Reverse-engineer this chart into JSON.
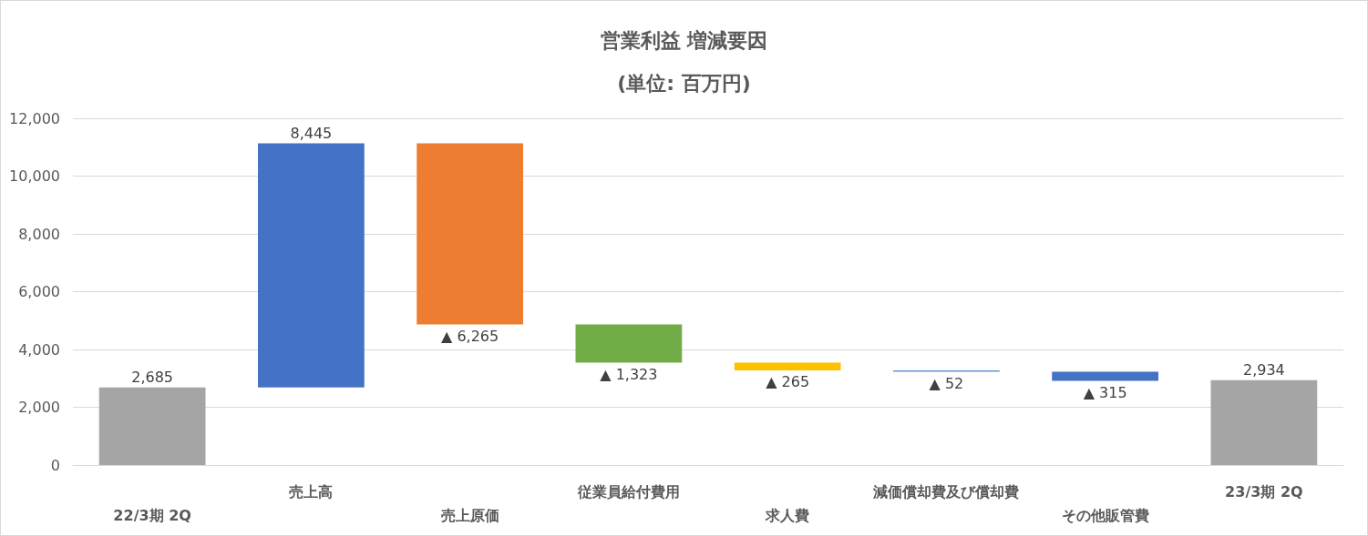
{
  "chart_data": {
    "type": "bar",
    "title": "営業利益 増減要因",
    "subtitle": "(単位: 百万円)",
    "categories": [
      "22/3期 2Q",
      "売上高",
      "売上原価",
      "従業員給付費用",
      "求人費",
      "減価償却費及び償却費",
      "その他販管費",
      "23/3期 2Q"
    ],
    "values": [
      2685,
      8445,
      -6265,
      -1323,
      -265,
      -52,
      -315,
      2934
    ],
    "base": [
      0,
      2685,
      11130,
      4865,
      3542,
      3277,
      3225,
      0
    ],
    "colors": [
      "#a5a5a5",
      "#4472c4",
      "#ed7d31",
      "#70ad47",
      "#ffc000",
      "#5b9bd5",
      "#4472c4",
      "#a5a5a5"
    ],
    "value_labels": [
      "2,685",
      "8,445",
      "▲ 6,265",
      "▲ 1,323",
      "▲ 265",
      "▲ 52",
      "▲ 315",
      "2,934"
    ],
    "ylim": [
      0,
      12000
    ],
    "yticks": [
      {
        "value": 0,
        "label": "0"
      },
      {
        "value": 2000,
        "label": "2,000"
      },
      {
        "value": 4000,
        "label": "4,000"
      },
      {
        "value": 6000,
        "label": "6,000"
      },
      {
        "value": 8000,
        "label": "8,000"
      },
      {
        "value": 10000,
        "label": "10,000"
      },
      {
        "value": 12000,
        "label": "12,000"
      }
    ],
    "grid": "y"
  }
}
